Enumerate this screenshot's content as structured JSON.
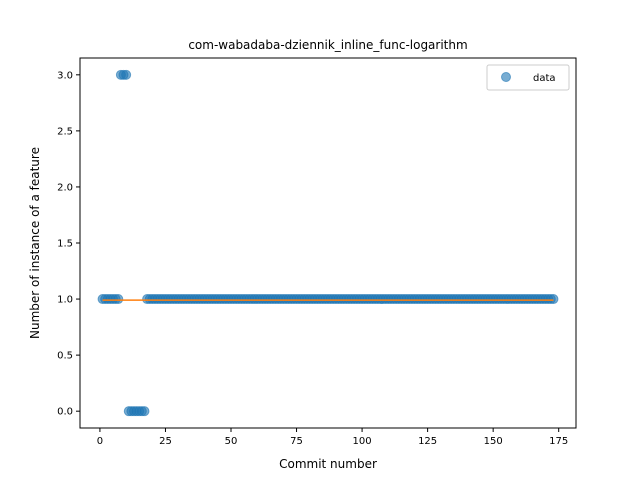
{
  "chart_data": {
    "type": "scatter",
    "title": "com-wabadaba-dziennik_inline_func-logarithm",
    "xlabel": "Commit number",
    "ylabel": "Number of instance of a feature",
    "xlim": [
      -7.6,
      181.6
    ],
    "ylim": [
      -0.15,
      3.15
    ],
    "xticks": [
      0,
      25,
      50,
      75,
      100,
      125,
      150,
      175
    ],
    "xtick_labels": [
      "0",
      "25",
      "50",
      "75",
      "100",
      "125",
      "150",
      "175"
    ],
    "yticks": [
      0.0,
      0.5,
      1.0,
      1.5,
      2.0,
      2.5,
      3.0
    ],
    "ytick_labels": [
      "0.0",
      "0.5",
      "1.0",
      "1.5",
      "2.0",
      "2.5",
      "3.0"
    ],
    "grid": false,
    "legend": {
      "placement": "top-right",
      "entries": [
        "data"
      ]
    },
    "series": [
      {
        "name": "data",
        "kind": "scatter",
        "color": "#1f77b4",
        "alpha": 0.6,
        "points": [
          [
            1,
            1
          ],
          [
            2,
            1
          ],
          [
            3,
            1
          ],
          [
            4,
            1
          ],
          [
            5,
            1
          ],
          [
            6,
            1
          ],
          [
            7,
            1
          ],
          [
            8,
            3
          ],
          [
            9,
            3
          ],
          [
            10,
            3
          ],
          [
            11,
            0
          ],
          [
            12,
            0
          ],
          [
            13,
            0
          ],
          [
            14,
            0
          ],
          [
            15,
            0
          ],
          [
            16,
            0
          ],
          [
            17,
            0
          ],
          [
            18,
            1
          ],
          [
            173,
            1
          ]
        ],
        "constant_run": {
          "x_start": 19,
          "x_end": 172,
          "y": 1
        }
      },
      {
        "kind": "line",
        "color": "#ff7f0e",
        "x": [
          1,
          173
        ],
        "y": [
          0.99,
          0.99
        ]
      }
    ]
  }
}
